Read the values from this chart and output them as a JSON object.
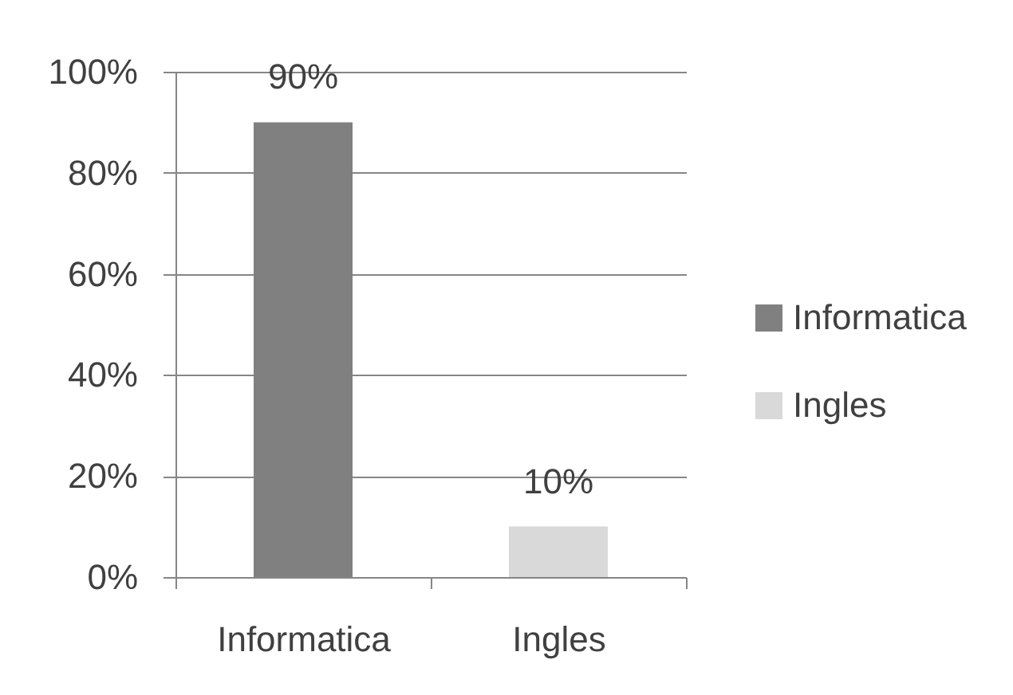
{
  "chart_data": {
    "type": "bar",
    "stacked": true,
    "categories": [
      "Informatica",
      "Ingles"
    ],
    "series": [
      {
        "name": "Informatica",
        "color": "#808080",
        "values": [
          90,
          null
        ],
        "value_labels": [
          "90%",
          null
        ]
      },
      {
        "name": "Ingles",
        "color": "#d9d9d9",
        "values": [
          null,
          10
        ],
        "value_labels": [
          null,
          "10%"
        ]
      }
    ],
    "ylim": [
      0,
      100
    ],
    "yticks": [
      {
        "value": 0,
        "label": "0%"
      },
      {
        "value": 20,
        "label": "20%"
      },
      {
        "value": 40,
        "label": "40%"
      },
      {
        "value": 60,
        "label": "60%"
      },
      {
        "value": 80,
        "label": "80%"
      },
      {
        "value": 100,
        "label": "100%"
      }
    ],
    "grid": "y",
    "legend": "right"
  }
}
